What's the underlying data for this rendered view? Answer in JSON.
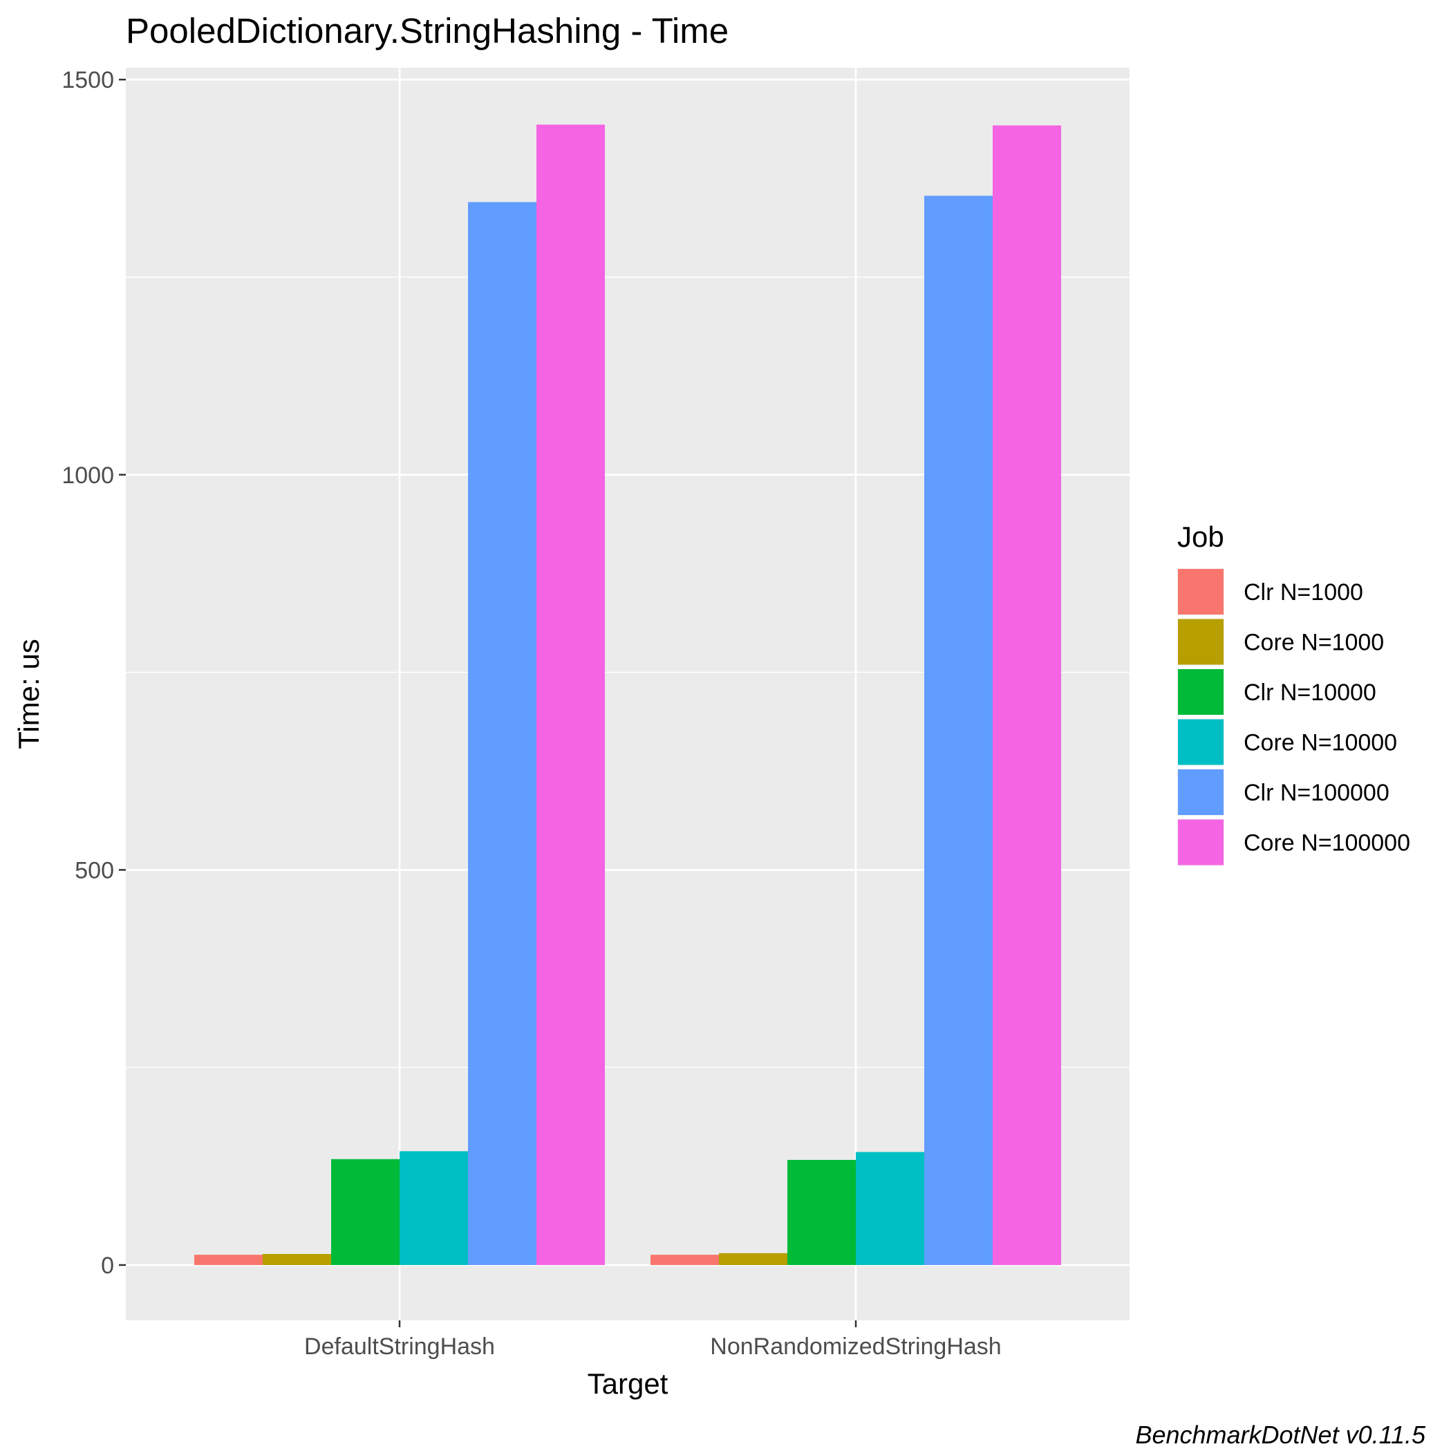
{
  "chart_data": {
    "type": "bar",
    "title": "PooledDictionary.StringHashing - Time",
    "xlabel": "Target",
    "ylabel": "Time: us",
    "caption": "BenchmarkDotNet v0.11.5",
    "legend_title": "Job",
    "legend_position": "right",
    "grid": true,
    "ylim": [
      -70,
      1515
    ],
    "yticks": [
      0,
      500,
      1000,
      1500
    ],
    "categories": [
      "DefaultStringHash",
      "NonRandomizedStringHash"
    ],
    "series": [
      {
        "name": "Clr N=1000",
        "color": "#F8766D",
        "values": [
          13,
          13
        ]
      },
      {
        "name": "Core N=1000",
        "color": "#B79F00",
        "values": [
          14,
          15
        ]
      },
      {
        "name": "Clr N=10000",
        "color": "#00BA38",
        "values": [
          134,
          133
        ]
      },
      {
        "name": "Core N=10000",
        "color": "#00BFC4",
        "values": [
          144,
          143
        ]
      },
      {
        "name": "Clr N=100000",
        "color": "#619CFF",
        "values": [
          1345,
          1353
        ]
      },
      {
        "name": "Core N=100000",
        "color": "#F564E3",
        "values": [
          1443,
          1442
        ]
      }
    ]
  }
}
